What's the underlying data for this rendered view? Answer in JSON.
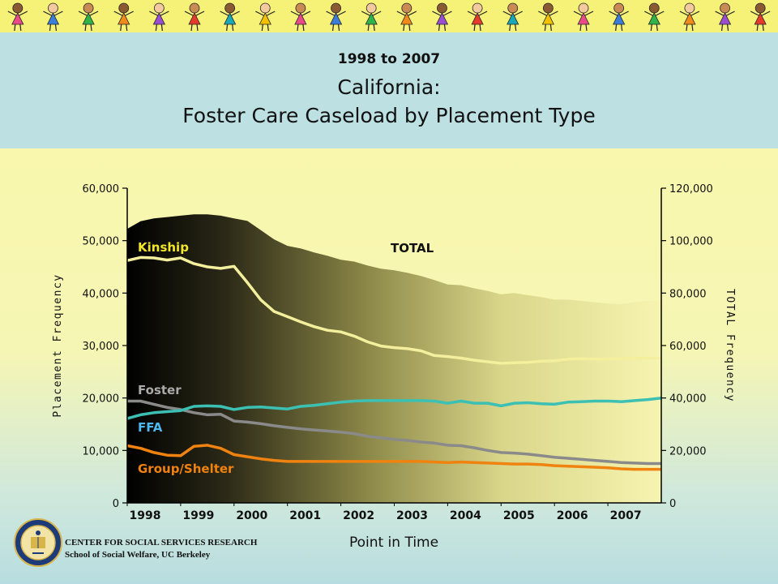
{
  "banner": {
    "figure_count": 22,
    "palette": [
      "#e84a8a",
      "#3b7dd8",
      "#2fb34a",
      "#f08a1c",
      "#9b4fd0",
      "#e53b2c",
      "#1aa7b8",
      "#f2c200"
    ]
  },
  "title": {
    "years": "1998 to 2007",
    "line1": "California:",
    "line2": "Foster Care Caseload by Placement Type"
  },
  "footer": {
    "org_line1": "CENTER FOR SOCIAL SERVICES RESEARCH",
    "org_line2": "School of Social Welfare, UC Berkeley",
    "seal_text": "UNIVERSITY OF CALIFORNIA 1868"
  },
  "chart_data": {
    "type": "area+line",
    "xlabel": "Point in Time",
    "ylabel_left": "Placement Frequency",
    "ylabel_right": "TOTAL Frequency",
    "left_ylim": [
      0,
      60000
    ],
    "right_ylim": [
      0,
      120000
    ],
    "left_ticks": [
      "0",
      "10,000",
      "20,000",
      "30,000",
      "40,000",
      "50,000",
      "60,000"
    ],
    "right_ticks": [
      "0",
      "20,000",
      "40,000",
      "60,000",
      "80,000",
      "100,000",
      "120,000"
    ],
    "xlim": [
      1998,
      2008
    ],
    "x_tick_labels": [
      "1998",
      "1999",
      "2000",
      "2001",
      "2002",
      "2003",
      "2004",
      "2005",
      "2006",
      "2007"
    ],
    "colors": {
      "Kinship": "#f3ef9c",
      "Foster": "#8a8a8a",
      "FFA": "#3cc0b4",
      "Group/Shelter": "#f0820f"
    },
    "label_colors": {
      "Kinship": "#f2e52a",
      "Foster": "#aaaaaa",
      "FFA": "#4db8f0",
      "Group/Shelter": "#f0820f",
      "TOTAL": "#111111"
    },
    "x": [
      1998,
      1998.25,
      1998.5,
      1998.75,
      1999,
      1999.25,
      1999.5,
      1999.75,
      2000,
      2000.25,
      2000.5,
      2000.75,
      2001,
      2001.25,
      2001.5,
      2001.75,
      2002,
      2002.25,
      2002.5,
      2002.75,
      2003,
      2003.25,
      2003.5,
      2003.75,
      2004,
      2004.25,
      2004.5,
      2004.75,
      2005,
      2005.25,
      2005.5,
      2005.75,
      2006,
      2006.25,
      2006.5,
      2006.75,
      2007,
      2007.25,
      2007.5,
      2007.75,
      2008
    ],
    "series": [
      {
        "name": "TOTAL",
        "axis": "right",
        "kind": "area",
        "values": [
          104500,
          107400,
          108500,
          109000,
          109500,
          110000,
          110000,
          109500,
          108500,
          107500,
          104000,
          100500,
          98000,
          97000,
          95500,
          94200,
          92700,
          92000,
          90500,
          89300,
          88700,
          87700,
          86500,
          85000,
          83300,
          83000,
          81800,
          80800,
          79500,
          80000,
          79200,
          78500,
          77500,
          77500,
          77000,
          76500,
          76000,
          75800,
          76500,
          77000,
          77000
        ]
      },
      {
        "name": "Kinship",
        "axis": "left",
        "kind": "line",
        "values": [
          46200,
          46800,
          46700,
          46300,
          46700,
          45600,
          45000,
          44700,
          45100,
          42000,
          38700,
          36500,
          35500,
          34500,
          33600,
          32900,
          32600,
          31800,
          30700,
          29900,
          29600,
          29400,
          29000,
          28100,
          27900,
          27600,
          27200,
          26900,
          26600,
          26700,
          26800,
          27000,
          27100,
          27400,
          27500,
          27400,
          27400,
          27500,
          27600,
          27600,
          27600
        ]
      },
      {
        "name": "Foster",
        "axis": "left",
        "kind": "line",
        "values": [
          19400,
          19400,
          18800,
          18200,
          17800,
          17200,
          16800,
          16900,
          15600,
          15400,
          15100,
          14700,
          14400,
          14100,
          13900,
          13700,
          13500,
          13200,
          12700,
          12400,
          12100,
          11900,
          11600,
          11400,
          11000,
          10900,
          10500,
          10000,
          9600,
          9500,
          9300,
          9000,
          8700,
          8500,
          8300,
          8100,
          7900,
          7700,
          7600,
          7500,
          7500
        ]
      },
      {
        "name": "FFA",
        "axis": "left",
        "kind": "line",
        "values": [
          16100,
          16800,
          17200,
          17400,
          17600,
          18400,
          18500,
          18400,
          17800,
          18200,
          18300,
          18100,
          17900,
          18400,
          18600,
          18900,
          19200,
          19400,
          19500,
          19500,
          19500,
          19500,
          19500,
          19400,
          19000,
          19400,
          19000,
          19000,
          18500,
          19000,
          19100,
          18900,
          18800,
          19200,
          19300,
          19400,
          19400,
          19300,
          19500,
          19700,
          20000
        ]
      },
      {
        "name": "Group/Shelter",
        "axis": "left",
        "kind": "line",
        "values": [
          10900,
          10400,
          9600,
          9100,
          9000,
          10800,
          11000,
          10400,
          9200,
          8800,
          8400,
          8100,
          7900,
          7900,
          7900,
          7900,
          7900,
          7900,
          7900,
          7900,
          7900,
          7900,
          7900,
          7800,
          7700,
          7800,
          7700,
          7600,
          7500,
          7400,
          7400,
          7300,
          7100,
          7000,
          6900,
          6800,
          6700,
          6500,
          6400,
          6400,
          6400
        ]
      }
    ],
    "labels": {
      "Kinship": "Kinship",
      "Foster": "Foster",
      "FFA": "FFA",
      "Group/Shelter": "Group/Shelter",
      "TOTAL": "TOTAL"
    }
  }
}
